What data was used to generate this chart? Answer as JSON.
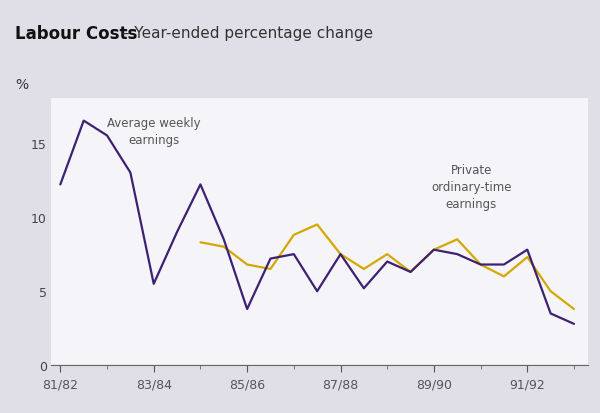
{
  "title_bold": "Labour Costs",
  "title_dash": " – ",
  "title_normal": "Year-ended percentage change",
  "ylabel": "%",
  "fig_background": "#e0dfe8",
  "header_background": "#d8d7e2",
  "plot_background": "#f5f4f8",
  "purple_color": "#3d2172",
  "gold_color": "#d4a800",
  "ylim": [
    0,
    18
  ],
  "yticks": [
    0,
    5,
    10,
    15
  ],
  "xtick_labels": [
    "81/82",
    "83/84",
    "85/86",
    "87/88",
    "89/90",
    "91/92"
  ],
  "x_major_ticks": [
    0,
    2,
    4,
    6,
    8,
    10
  ],
  "xlim": [
    -0.2,
    11.3
  ],
  "awe_text": "Average weekly\nearnings",
  "awe_x": 2.0,
  "awe_y": 14.8,
  "poe_text": "Private\nordinary-time\nearnings",
  "poe_x": 8.8,
  "poe_y": 10.5,
  "avg_weekly_x": [
    0,
    0.5,
    1.0,
    1.5,
    2.0,
    2.5,
    3.0,
    3.5,
    4.0,
    4.5,
    5.0,
    5.5,
    6.0,
    6.5,
    7.0,
    7.5,
    8.0,
    8.5,
    9.0,
    9.5,
    10.0,
    10.5,
    11.0
  ],
  "avg_weekly_y": [
    12.2,
    16.5,
    15.5,
    13.0,
    5.5,
    9.0,
    12.2,
    8.5,
    3.8,
    7.2,
    7.5,
    5.0,
    7.5,
    5.2,
    7.0,
    6.3,
    7.8,
    7.5,
    6.8,
    6.8,
    7.8,
    3.5,
    2.8
  ],
  "private_x": [
    3.0,
    3.5,
    4.0,
    4.5,
    5.0,
    5.5,
    6.0,
    6.5,
    7.0,
    7.5,
    8.0,
    8.5,
    9.0,
    9.5,
    10.0,
    10.5,
    11.0
  ],
  "private_y": [
    8.3,
    8.0,
    6.8,
    6.5,
    8.8,
    9.5,
    7.5,
    6.5,
    7.5,
    6.3,
    7.8,
    8.5,
    6.8,
    6.0,
    7.3,
    5.0,
    3.8
  ]
}
